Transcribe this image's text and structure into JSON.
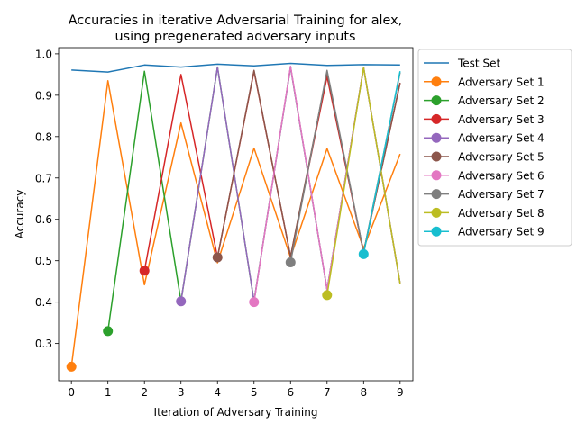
{
  "chart_data": {
    "type": "line",
    "title": "Accuracies in iterative Adversarial Training for alex,",
    "subtitle": "using pregenerated adversary inputs",
    "xlabel": "Iteration of Adversary Training",
    "ylabel": "Accuracy",
    "xlim": [
      -0.35,
      9.35
    ],
    "ylim": [
      0.21,
      1.015
    ],
    "xticks": [
      0,
      1,
      2,
      3,
      4,
      5,
      6,
      7,
      8,
      9
    ],
    "yticks": [
      0.3,
      0.4,
      0.5,
      0.6,
      0.7,
      0.8,
      0.9,
      1.0
    ],
    "ytick_labels": [
      "0.3",
      "0.4",
      "0.5",
      "0.6",
      "0.7",
      "0.8",
      "0.9",
      "1.0"
    ],
    "grid": false,
    "legend_position": "outside-right",
    "series": [
      {
        "name": "Test Set",
        "color": "#1f77b4",
        "marker": false,
        "x": [
          0,
          1,
          2,
          3,
          4,
          5,
          6,
          7,
          8,
          9
        ],
        "values": [
          0.961,
          0.956,
          0.973,
          0.968,
          0.975,
          0.971,
          0.977,
          0.972,
          0.974,
          0.973
        ]
      },
      {
        "name": "Adversary Set 1",
        "color": "#ff7f0e",
        "marker": true,
        "x": [
          0,
          1,
          2,
          3,
          4,
          5,
          6,
          7,
          8,
          9
        ],
        "values": [
          0.244,
          0.935,
          0.442,
          0.833,
          0.495,
          0.772,
          0.508,
          0.771,
          0.53,
          0.758
        ]
      },
      {
        "name": "Adversary Set 2",
        "color": "#2ca02c",
        "marker": true,
        "x": [
          1,
          2,
          3,
          4,
          5,
          6,
          7,
          8,
          9
        ],
        "values": [
          0.33,
          0.958,
          0.402,
          0.968,
          0.402,
          0.968,
          0.43,
          0.967,
          0.445
        ]
      },
      {
        "name": "Adversary Set 3",
        "color": "#d62728",
        "marker": true,
        "x": [
          2,
          3,
          4,
          5,
          6,
          7,
          8,
          9
        ],
        "values": [
          0.476,
          0.95,
          0.508,
          0.958,
          0.51,
          0.945,
          0.52,
          0.93
        ]
      },
      {
        "name": "Adversary Set 4",
        "color": "#9467bd",
        "marker": true,
        "x": [
          3,
          4,
          5,
          6,
          7,
          8,
          9
        ],
        "values": [
          0.402,
          0.968,
          0.402,
          0.968,
          0.43,
          0.967,
          0.445
        ]
      },
      {
        "name": "Adversary Set 5",
        "color": "#8c564b",
        "marker": true,
        "x": [
          4,
          5,
          6,
          7,
          8,
          9
        ],
        "values": [
          0.508,
          0.96,
          0.51,
          0.955,
          0.52,
          0.93
        ]
      },
      {
        "name": "Adversary Set 6",
        "color": "#e377c2",
        "marker": true,
        "x": [
          5,
          6,
          7,
          8,
          9
        ],
        "values": [
          0.4,
          0.97,
          0.43,
          0.967,
          0.445
        ]
      },
      {
        "name": "Adversary Set 7",
        "color": "#7f7f7f",
        "marker": true,
        "x": [
          6,
          7,
          8,
          9
        ],
        "values": [
          0.496,
          0.96,
          0.52,
          0.955
        ]
      },
      {
        "name": "Adversary Set 8",
        "color": "#bcbd22",
        "marker": true,
        "x": [
          7,
          8,
          9
        ],
        "values": [
          0.417,
          0.967,
          0.445
        ]
      },
      {
        "name": "Adversary Set 9",
        "color": "#17becf",
        "marker": true,
        "x": [
          8,
          9
        ],
        "values": [
          0.516,
          0.958
        ]
      }
    ]
  }
}
